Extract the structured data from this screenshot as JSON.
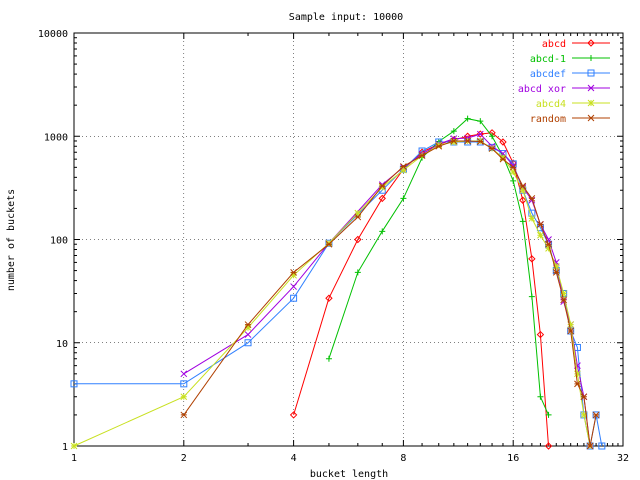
{
  "chart_data": {
    "type": "line",
    "title": "Sample input: 10000",
    "xlabel": "bucket length",
    "ylabel": "number of buckets",
    "x_scale": "log2",
    "y_scale": "log10",
    "xlim": [
      1,
      32
    ],
    "ylim": [
      1,
      10000
    ],
    "x_ticks": [
      1,
      2,
      4,
      8,
      16,
      32
    ],
    "x_tick_labels": [
      "1",
      "2",
      "4",
      "8",
      "16",
      "32"
    ],
    "y_ticks": [
      1,
      10,
      100,
      1000,
      10000
    ],
    "y_tick_labels": [
      "1",
      "10",
      "100",
      "1000",
      "10000"
    ],
    "grid": true,
    "legend_position": "top-right",
    "series": [
      {
        "name": "abcd",
        "color": "#ff0000",
        "marker": "diamond",
        "points": [
          [
            4,
            2
          ],
          [
            5,
            27
          ],
          [
            6,
            100
          ],
          [
            7,
            250
          ],
          [
            8,
            480
          ],
          [
            9,
            700
          ],
          [
            10,
            840
          ],
          [
            11,
            920
          ],
          [
            12,
            1000
          ],
          [
            13,
            1050
          ],
          [
            14,
            1080
          ],
          [
            15,
            880
          ],
          [
            16,
            550
          ],
          [
            17,
            240
          ],
          [
            18,
            65
          ],
          [
            19,
            12
          ],
          [
            20,
            1
          ]
        ]
      },
      {
        "name": "abcd-1",
        "color": "#00c000",
        "marker": "plus",
        "points": [
          [
            5,
            7
          ],
          [
            6,
            48
          ],
          [
            7,
            120
          ],
          [
            8,
            250
          ],
          [
            9,
            620
          ],
          [
            10,
            890
          ],
          [
            11,
            1120
          ],
          [
            12,
            1480
          ],
          [
            13,
            1400
          ],
          [
            14,
            1000
          ],
          [
            15,
            640
          ],
          [
            16,
            370
          ],
          [
            17,
            150
          ],
          [
            18,
            28
          ],
          [
            19,
            3
          ],
          [
            20,
            2
          ]
        ]
      },
      {
        "name": "abcdef",
        "color": "#3080ff",
        "marker": "square",
        "points": [
          [
            1,
            4
          ],
          [
            2,
            4
          ],
          [
            3,
            10
          ],
          [
            4,
            27
          ],
          [
            5,
            92
          ],
          [
            7,
            300
          ],
          [
            8,
            480
          ],
          [
            9,
            720
          ],
          [
            10,
            880
          ],
          [
            11,
            880
          ],
          [
            12,
            880
          ],
          [
            13,
            880
          ],
          [
            14,
            780
          ],
          [
            15,
            680
          ],
          [
            16,
            540
          ],
          [
            17,
            300
          ],
          [
            18,
            180
          ],
          [
            19,
            130
          ],
          [
            20,
            90
          ],
          [
            21,
            50
          ],
          [
            22,
            30
          ],
          [
            23,
            13
          ],
          [
            24,
            9
          ],
          [
            25,
            2
          ],
          [
            26,
            1
          ],
          [
            27,
            2
          ],
          [
            28,
            1
          ]
        ]
      },
      {
        "name": "abcd xor",
        "color": "#a000e0",
        "marker": "x",
        "points": [
          [
            2,
            5
          ],
          [
            3,
            12
          ],
          [
            4,
            35
          ],
          [
            5,
            92
          ],
          [
            7,
            340
          ],
          [
            8,
            500
          ],
          [
            9,
            670
          ],
          [
            10,
            840
          ],
          [
            11,
            950
          ],
          [
            12,
            960
          ],
          [
            13,
            1050
          ],
          [
            14,
            800
          ],
          [
            15,
            680
          ],
          [
            16,
            520
          ],
          [
            17,
            320
          ],
          [
            18,
            240
          ],
          [
            19,
            140
          ],
          [
            20,
            100
          ],
          [
            21,
            60
          ],
          [
            22,
            25
          ],
          [
            23,
            15
          ],
          [
            24,
            6
          ],
          [
            25,
            3
          ],
          [
            26,
            1
          ]
        ]
      },
      {
        "name": "abcd4",
        "color": "#c8e020",
        "marker": "star",
        "points": [
          [
            1,
            1
          ],
          [
            2,
            3
          ],
          [
            3,
            14
          ],
          [
            4,
            45
          ],
          [
            5,
            92
          ],
          [
            6,
            180
          ],
          [
            7,
            320
          ],
          [
            8,
            470
          ],
          [
            9,
            650
          ],
          [
            10,
            820
          ],
          [
            11,
            880
          ],
          [
            12,
            900
          ],
          [
            13,
            900
          ],
          [
            14,
            760
          ],
          [
            15,
            620
          ],
          [
            16,
            450
          ],
          [
            17,
            300
          ],
          [
            18,
            160
          ],
          [
            19,
            110
          ],
          [
            20,
            82
          ],
          [
            21,
            55
          ],
          [
            22,
            30
          ],
          [
            23,
            15
          ],
          [
            24,
            5
          ],
          [
            25,
            2
          ],
          [
            26,
            1
          ]
        ]
      },
      {
        "name": "random",
        "color": "#b04000",
        "marker": "asterisk",
        "points": [
          [
            2,
            2
          ],
          [
            3,
            15
          ],
          [
            4,
            48
          ],
          [
            5,
            90
          ],
          [
            6,
            165
          ],
          [
            7,
            330
          ],
          [
            8,
            510
          ],
          [
            9,
            650
          ],
          [
            10,
            800
          ],
          [
            11,
            900
          ],
          [
            12,
            900
          ],
          [
            13,
            890
          ],
          [
            14,
            760
          ],
          [
            15,
            600
          ],
          [
            16,
            500
          ],
          [
            17,
            330
          ],
          [
            18,
            250
          ],
          [
            19,
            140
          ],
          [
            20,
            90
          ],
          [
            21,
            48
          ],
          [
            22,
            26
          ],
          [
            23,
            13
          ],
          [
            24,
            4
          ],
          [
            25,
            3
          ],
          [
            26,
            1
          ],
          [
            27,
            2
          ]
        ]
      }
    ]
  }
}
